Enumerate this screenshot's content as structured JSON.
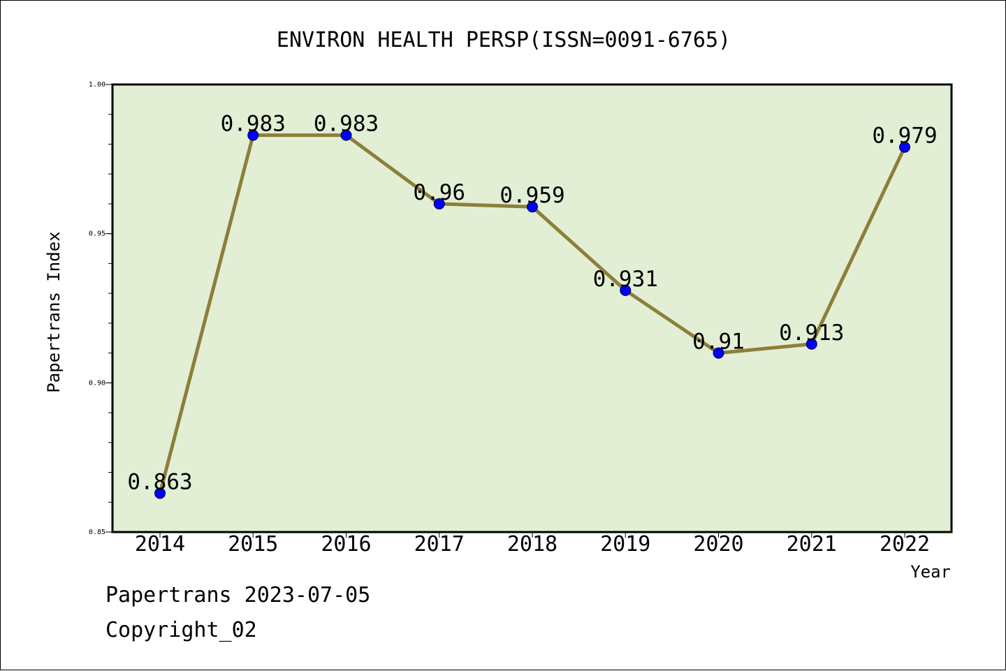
{
  "chart_data": {
    "type": "line",
    "title": "ENVIRON HEALTH PERSP(ISSN=0091-6765)",
    "xlabel": "Year",
    "ylabel": "Papertrans Index",
    "categories": [
      "2014",
      "2015",
      "2016",
      "2017",
      "2018",
      "2019",
      "2020",
      "2021",
      "2022"
    ],
    "values": [
      0.863,
      0.983,
      0.983,
      0.96,
      0.959,
      0.931,
      0.91,
      0.913,
      0.979
    ],
    "data_labels": [
      "0.863",
      "0.983",
      "0.983",
      "0.96",
      "0.959",
      "0.931",
      "0.91",
      "0.913",
      "0.979"
    ],
    "ylim": [
      0.85,
      1.0
    ],
    "yticks": [
      0.85,
      0.9,
      0.95,
      1.0
    ],
    "ytick_labels": [
      "0.85",
      "0.90",
      "0.95",
      "1.00"
    ],
    "grid": false,
    "legend": "none",
    "colors": {
      "plot_background": "#e2efd5",
      "line": "#8c7f3a",
      "marker": "#0000ff",
      "axes": "#000000"
    }
  },
  "footer": {
    "line1": "Papertrans 2023-07-05",
    "line2": "Copyright_02"
  }
}
